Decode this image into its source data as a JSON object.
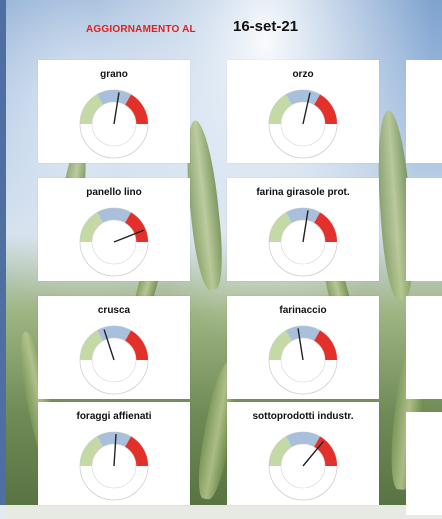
{
  "header": {
    "label": "AGGIORNAMENTO AL",
    "date": "16-set-21"
  },
  "colors": {
    "low": "#c4d9a6",
    "mid": "#a9c0dd",
    "high": "#e3302a",
    "label_red": "#e02020"
  },
  "cards": [
    {
      "title": "grano",
      "needle_level": 0.55
    },
    {
      "title": "orzo",
      "needle_level": 0.57
    },
    {
      "title": "panello lino",
      "needle_level": 0.88
    },
    {
      "title": "farina girasole prot.",
      "needle_level": 0.55
    },
    {
      "title": "crusca",
      "needle_level": 0.4
    },
    {
      "title": "farinaccio",
      "needle_level": 0.45
    },
    {
      "title": "foraggi affienati",
      "needle_level": 0.52
    },
    {
      "title": "sottoprodotti industr.",
      "needle_level": 0.72
    }
  ]
}
